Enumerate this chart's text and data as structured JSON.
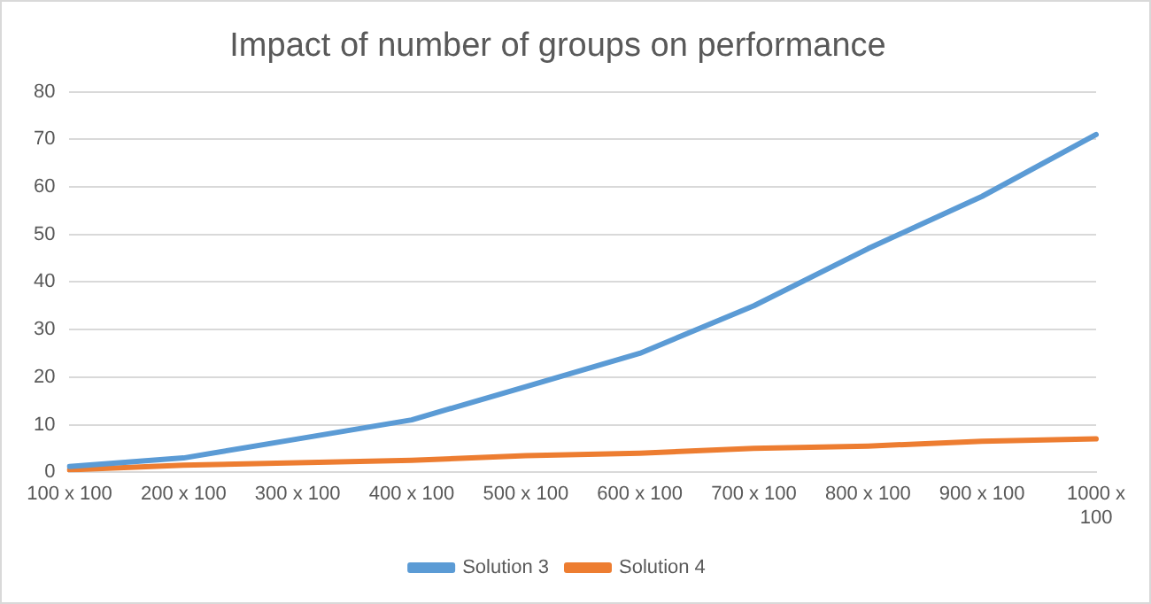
{
  "chart_data": {
    "type": "line",
    "title": "Impact of number of groups on performance",
    "categories": [
      "100 x 100",
      "200 x 100",
      "300 x 100",
      "400 x 100",
      "500 x 100",
      "600 x 100",
      "700 x 100",
      "800 x 100",
      "900 x 100",
      "1000 x 100"
    ],
    "series": [
      {
        "name": "Solution 3",
        "color": "#5b9bd5",
        "values": [
          1.2,
          3,
          7,
          11,
          18,
          25,
          35,
          47,
          58,
          71
        ]
      },
      {
        "name": "Solution 4",
        "color": "#ed7d31",
        "values": [
          0.5,
          1.5,
          2,
          2.5,
          3.5,
          4,
          5,
          5.5,
          6.5,
          7
        ]
      }
    ],
    "ylim": [
      0,
      80
    ],
    "yticks": [
      0,
      10,
      20,
      30,
      40,
      50,
      60,
      70,
      80
    ],
    "grid": "y",
    "legend": "bottom",
    "marker": "none",
    "line_style": "solid"
  }
}
